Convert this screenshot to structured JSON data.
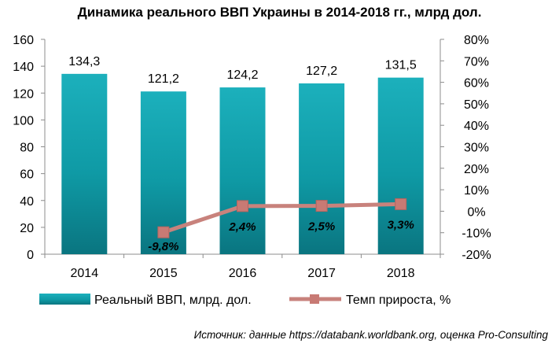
{
  "chart_data": {
    "type": "bar+line",
    "title": "Динамика реального ВВП Украины в 2014-2018 гг., млрд дол.",
    "categories": [
      "2014",
      "2015",
      "2016",
      "2017",
      "2018"
    ],
    "series": [
      {
        "name": "Реальный ВВП, млрд. дол.",
        "type": "bar",
        "axis": "left",
        "values": [
          134.3,
          121.2,
          124.2,
          127.2,
          131.5
        ],
        "labels": [
          "134,3",
          "121,2",
          "124,2",
          "127,2",
          "131,5"
        ],
        "color": "#13a2ae"
      },
      {
        "name": "Темп прироста, %",
        "type": "line",
        "axis": "right",
        "values": [
          null,
          -9.8,
          2.4,
          2.5,
          3.3
        ],
        "labels": [
          "",
          "-9,8%",
          "2,4%",
          "2,5%",
          "3,3%"
        ],
        "color": "#c8827c"
      }
    ],
    "y_left": {
      "min": 0,
      "max": 160,
      "ticks": [
        "0",
        "20",
        "40",
        "60",
        "80",
        "100",
        "120",
        "140",
        "160"
      ]
    },
    "y_right": {
      "min": -20,
      "max": 80,
      "ticks": [
        "-20%",
        "-10%",
        "0%",
        "10%",
        "20%",
        "30%",
        "40%",
        "50%",
        "60%",
        "70%",
        "80%"
      ]
    },
    "grid": false,
    "legend": "bottom"
  },
  "source": "Источник: данные https://databank.worldbank.org, оценка Pro-Consulting"
}
